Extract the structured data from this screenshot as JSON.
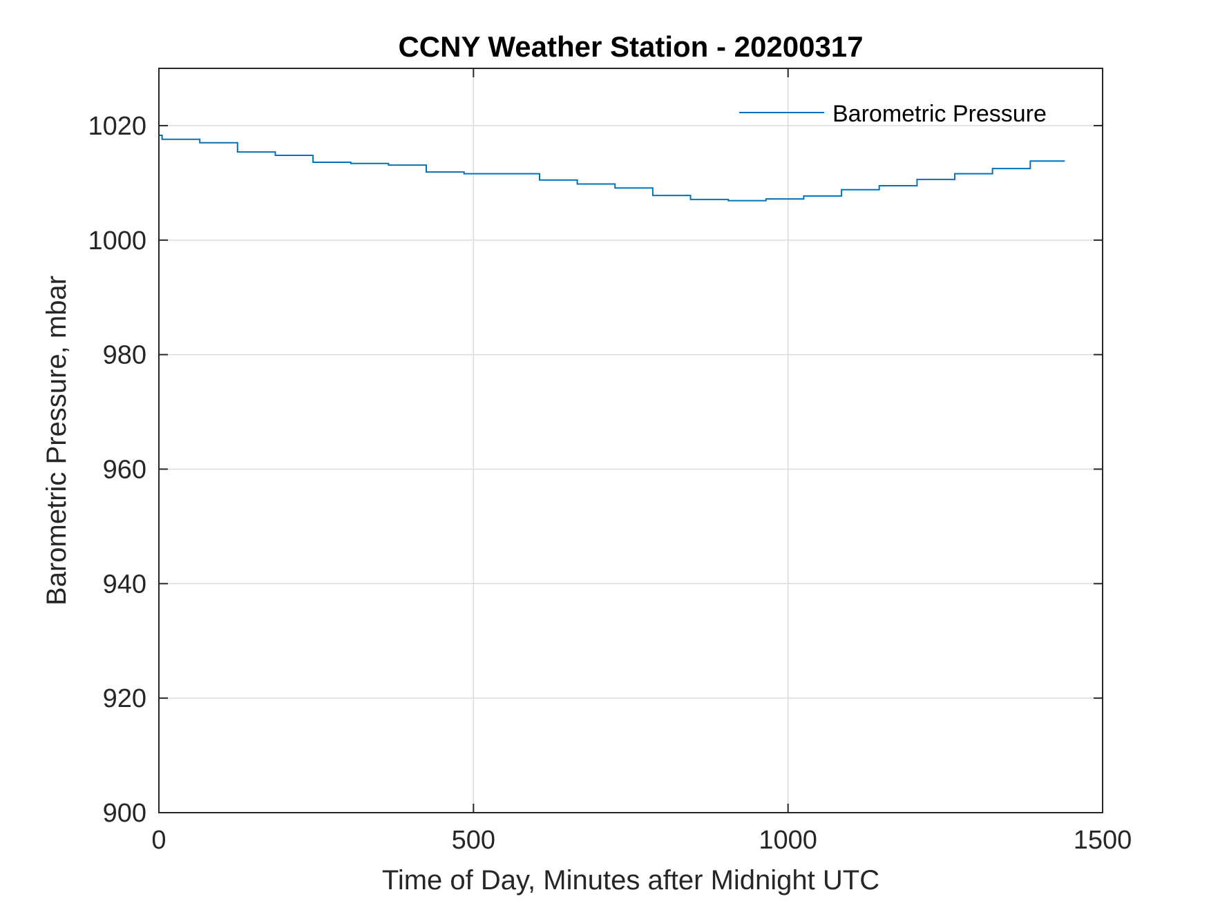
{
  "chart_data": {
    "type": "line",
    "title": "CCNY Weather Station - 20200317",
    "xlabel": "Time of Day, Minutes after Midnight UTC",
    "ylabel": "Barometric Pressure, mbar",
    "xlim": [
      0,
      1500
    ],
    "ylim": [
      900,
      1030
    ],
    "xticks": [
      0,
      500,
      1000,
      1500
    ],
    "yticks": [
      900,
      920,
      940,
      960,
      980,
      1000,
      1020
    ],
    "grid": true,
    "legend_position": "top-right",
    "colors": {
      "series": "#0072BD",
      "axes": "#262626",
      "grid": "#dcdcdc",
      "title": "#000000"
    },
    "series": [
      {
        "name": "Barometric Pressure",
        "x": [
          0,
          5,
          5,
          65,
          65,
          125,
          125,
          185,
          185,
          245,
          245,
          305,
          305,
          365,
          365,
          425,
          425,
          485,
          485,
          605,
          605,
          665,
          665,
          725,
          725,
          785,
          785,
          845,
          845,
          905,
          905,
          965,
          965,
          1025,
          1025,
          1085,
          1085,
          1145,
          1145,
          1205,
          1205,
          1265,
          1265,
          1325,
          1325,
          1385,
          1385,
          1440
        ],
        "y": [
          1018.3,
          1018.3,
          1017.6,
          1017.6,
          1017.0,
          1017.0,
          1015.4,
          1015.4,
          1014.8,
          1014.8,
          1013.6,
          1013.6,
          1013.4,
          1013.4,
          1013.1,
          1013.1,
          1011.9,
          1011.9,
          1011.6,
          1011.6,
          1010.5,
          1010.5,
          1009.8,
          1009.8,
          1009.1,
          1009.1,
          1007.8,
          1007.8,
          1007.1,
          1007.1,
          1006.9,
          1006.9,
          1007.2,
          1007.2,
          1007.7,
          1007.7,
          1008.8,
          1008.8,
          1009.5,
          1009.5,
          1010.6,
          1010.6,
          1011.6,
          1011.6,
          1012.5,
          1012.5,
          1013.8,
          1013.8
        ]
      }
    ]
  }
}
